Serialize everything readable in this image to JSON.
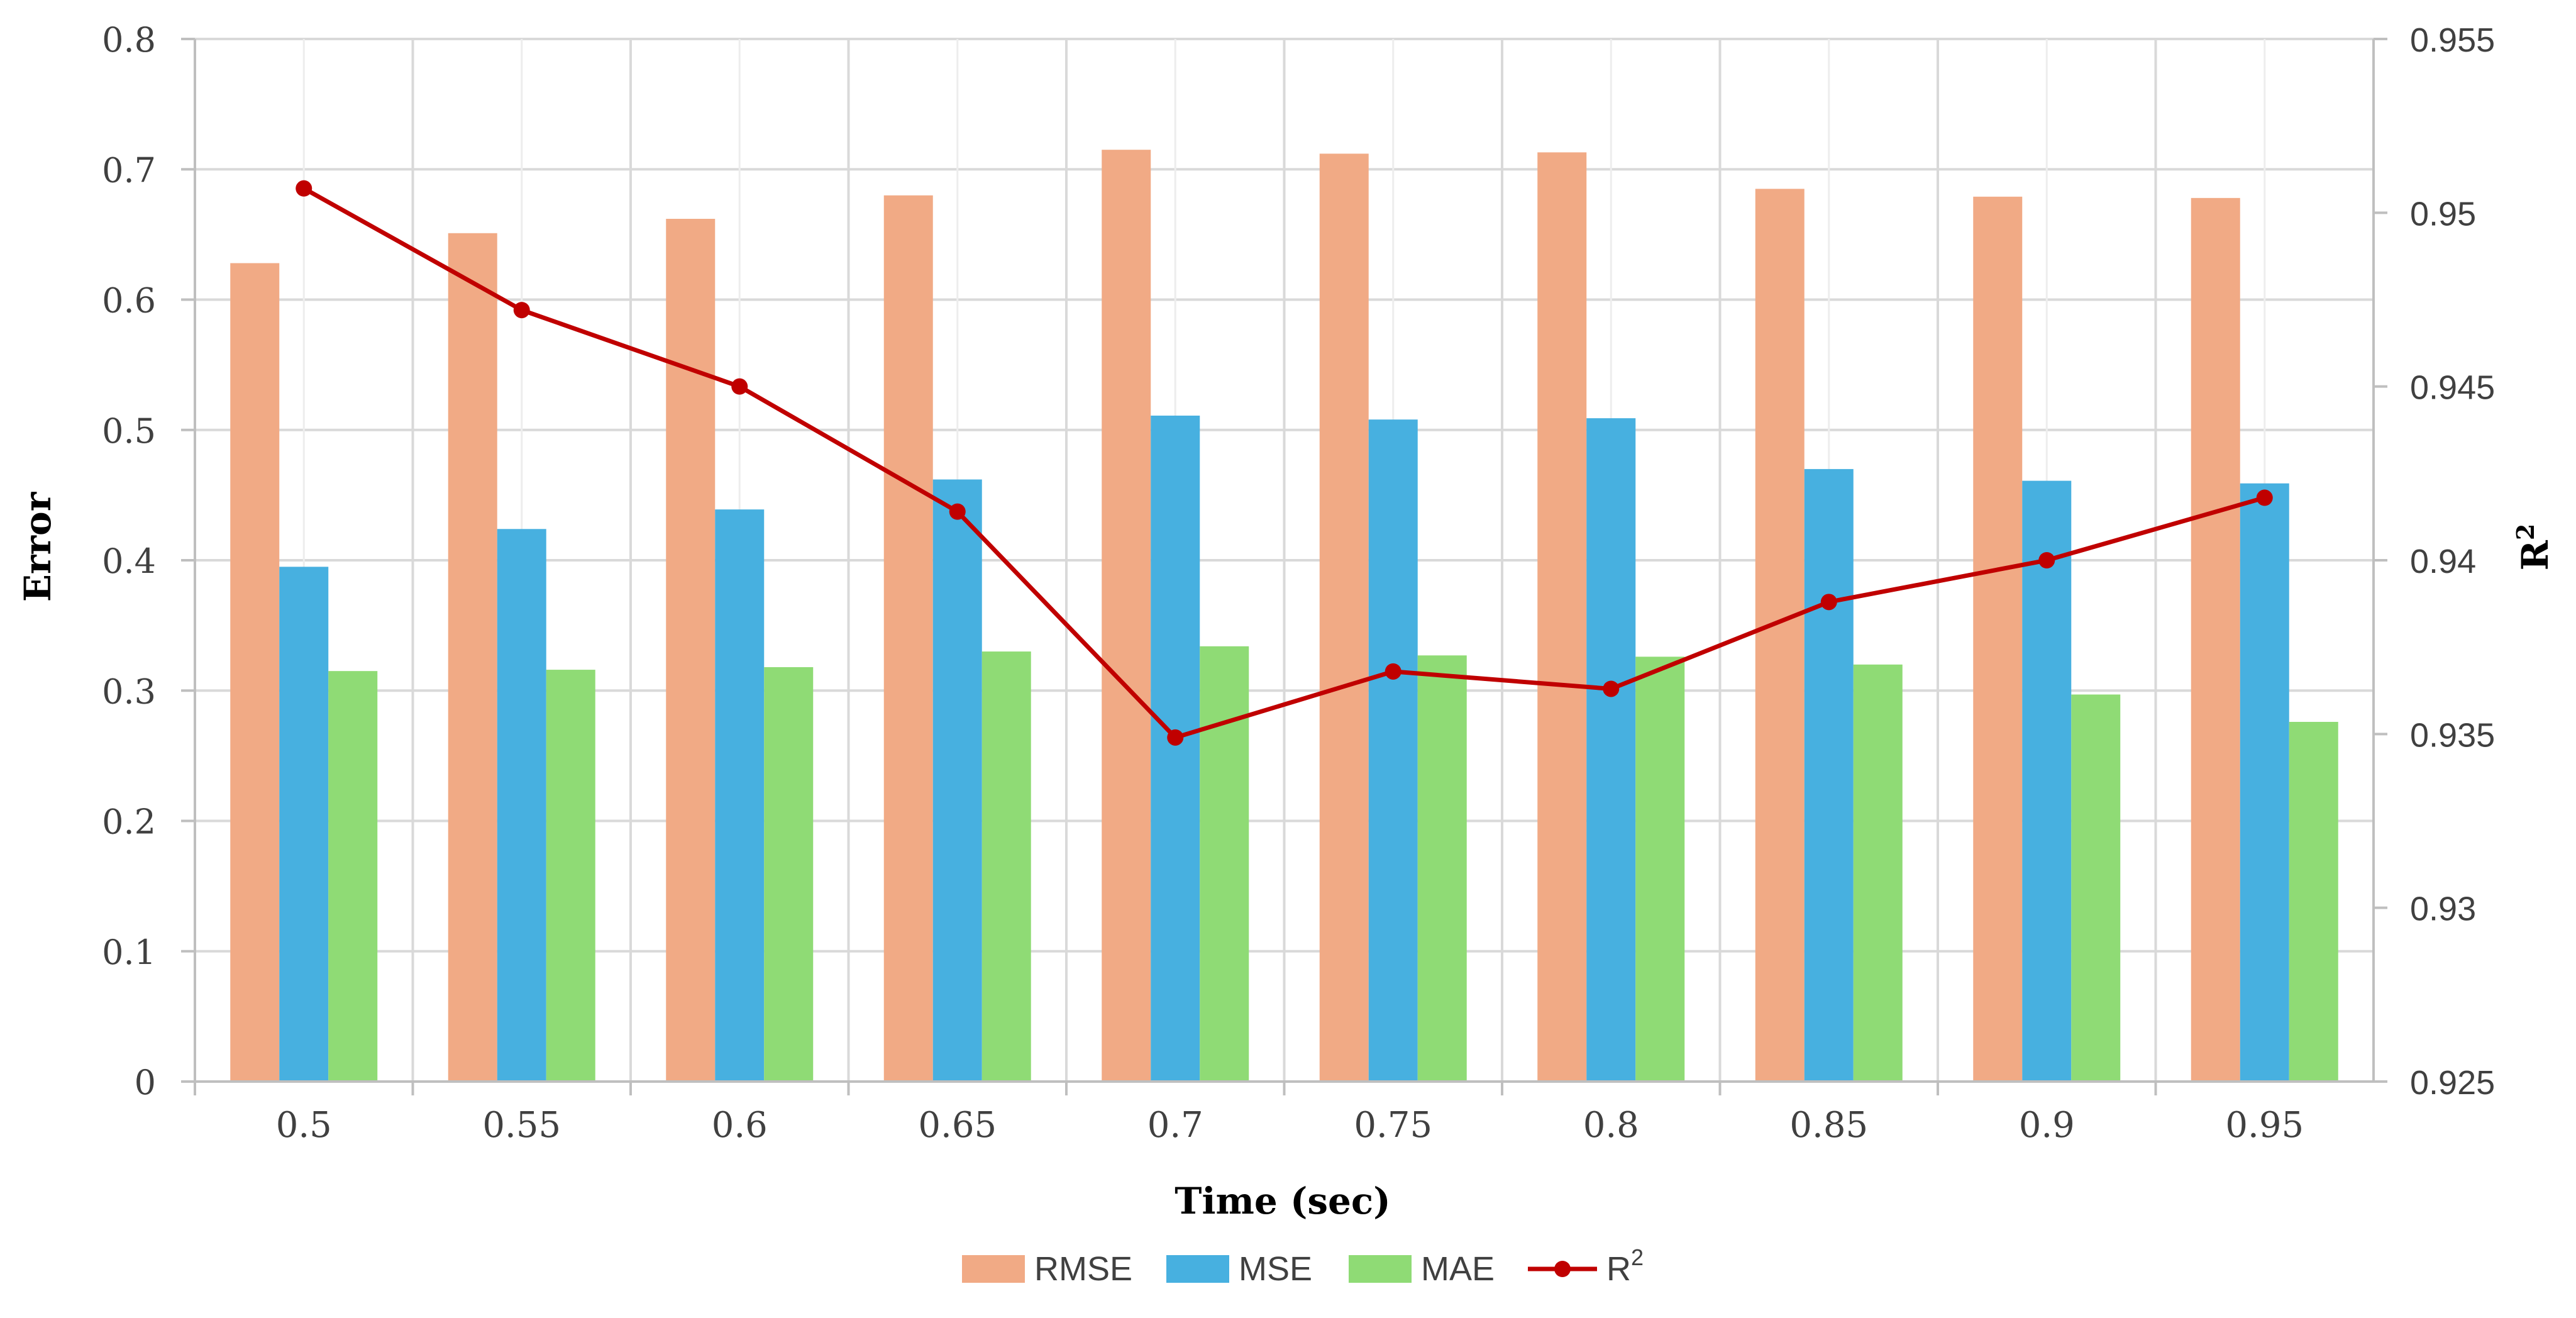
{
  "chart_data": {
    "type": "bar",
    "title": "",
    "xlabel": "Time (sec)",
    "ylabel": "Error",
    "y2label": "R",
    "y2label_sup": "2",
    "categories": [
      "0.5",
      "0.55",
      "0.6",
      "0.65",
      "0.7",
      "0.75",
      "0.8",
      "0.85",
      "0.9",
      "0.95"
    ],
    "ylim": [
      0,
      0.8
    ],
    "y_ticks": [
      "0",
      "0.1",
      "0.2",
      "0.3",
      "0.4",
      "0.5",
      "0.6",
      "0.7",
      "0.8"
    ],
    "y2lim": [
      0.925,
      0.955
    ],
    "y2_ticks": [
      "0.925",
      "0.93",
      "0.935",
      "0.94",
      "0.945",
      "0.95",
      "0.955"
    ],
    "grid": true,
    "legend_position": "bottom",
    "series": [
      {
        "name": "RMSE",
        "kind": "bar",
        "axis": "left",
        "color": "#F1AA85",
        "values": [
          0.628,
          0.651,
          0.662,
          0.68,
          0.715,
          0.712,
          0.713,
          0.685,
          0.679,
          0.678
        ]
      },
      {
        "name": "MSE",
        "kind": "bar",
        "axis": "left",
        "color": "#47B0E0",
        "values": [
          0.395,
          0.424,
          0.439,
          0.462,
          0.511,
          0.508,
          0.509,
          0.47,
          0.461,
          0.459
        ]
      },
      {
        "name": "MAE",
        "kind": "bar",
        "axis": "left",
        "color": "#8FDB75",
        "values": [
          0.315,
          0.316,
          0.318,
          0.33,
          0.334,
          0.327,
          0.326,
          0.32,
          0.297,
          0.276
        ]
      },
      {
        "name": "R",
        "name_sup": "2",
        "kind": "line",
        "axis": "right",
        "color": "#C00000",
        "values": [
          0.9507,
          0.9472,
          0.945,
          0.9414,
          0.9349,
          0.9368,
          0.9363,
          0.9388,
          0.94,
          0.9418
        ]
      }
    ]
  }
}
